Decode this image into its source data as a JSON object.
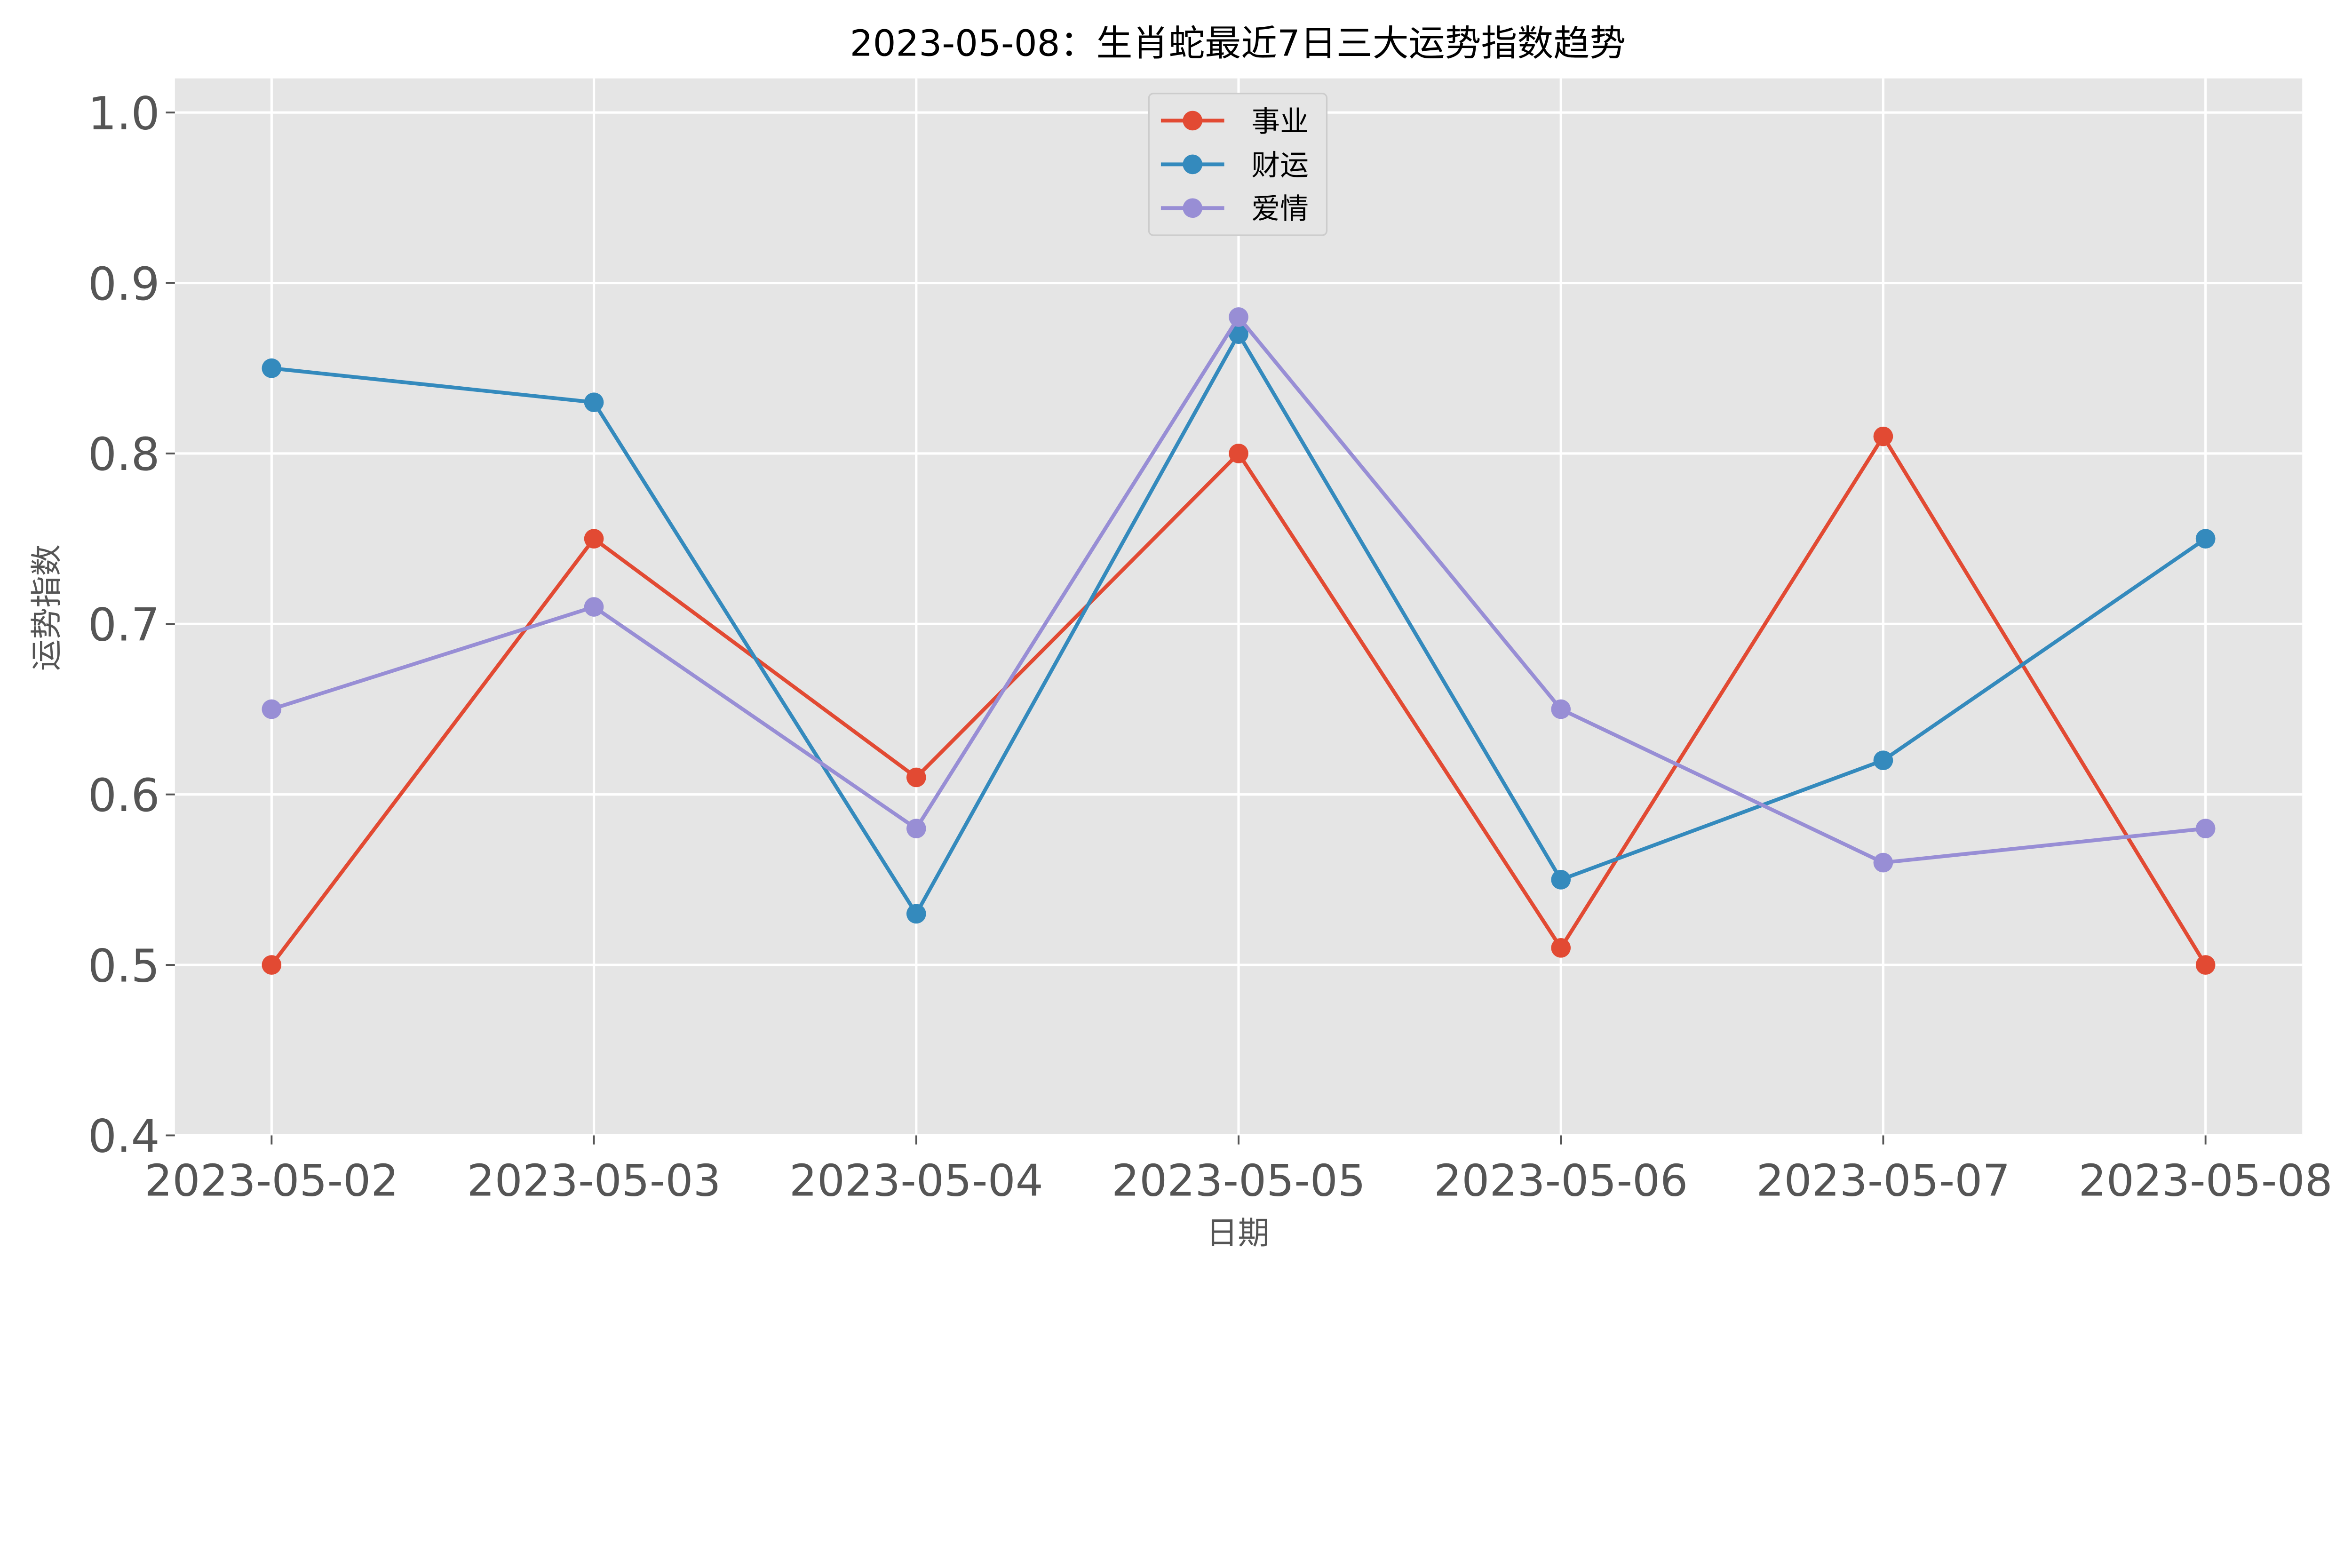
{
  "chart_data": {
    "type": "line",
    "title": "2023-05-08：生肖蛇最近7日三大运势指数趋势",
    "xlabel": "日期",
    "ylabel": "运势指数",
    "categories": [
      "2023-05-02",
      "2023-05-03",
      "2023-05-04",
      "2023-05-05",
      "2023-05-06",
      "2023-05-07",
      "2023-05-08"
    ],
    "ylim": [
      0.4,
      1.02
    ],
    "yticks": [
      "0.4",
      "0.5",
      "0.6",
      "0.7",
      "0.8",
      "0.9",
      "1.0"
    ],
    "grid": true,
    "legend_placement": "upper-center",
    "background": "#E5E5E5",
    "series": [
      {
        "name": "事业",
        "color": "#E24A33",
        "values": [
          0.5,
          0.75,
          0.61,
          0.8,
          0.51,
          0.81,
          0.5
        ]
      },
      {
        "name": "财运",
        "color": "#348ABD",
        "values": [
          0.85,
          0.83,
          0.53,
          0.87,
          0.55,
          0.62,
          0.75
        ]
      },
      {
        "name": "爱情",
        "color": "#988ED5",
        "values": [
          0.65,
          0.71,
          0.58,
          0.88,
          0.65,
          0.56,
          0.58
        ]
      }
    ]
  }
}
